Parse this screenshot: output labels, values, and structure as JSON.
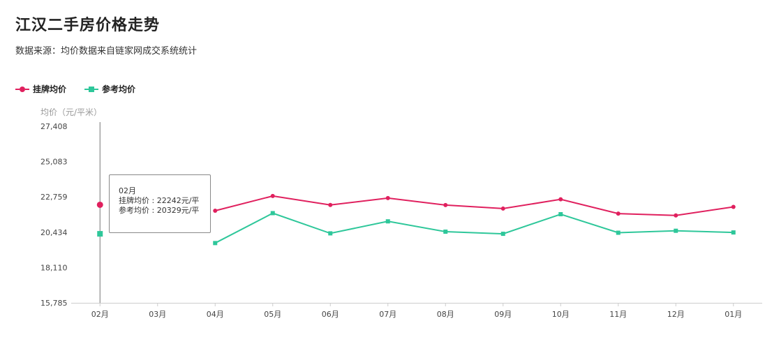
{
  "header": {
    "title": "江汉二手房价格走势",
    "subtitle": "数据来源：均价数据来自链家网成交系统统计"
  },
  "colors": {
    "listing": "#e0205e",
    "reference": "#2ec79a",
    "axis": "#999999",
    "tick_text": "#444444",
    "grid": "#e8e8e8"
  },
  "tooltip": {
    "month": "02月",
    "line1": "挂牌均价 : 22242元/平",
    "line2": "参考均价 : 20329元/平"
  },
  "chart_data": {
    "type": "line",
    "ylabel": "均价（元/平米）",
    "yticks": [
      "27,408",
      "25,083",
      "22,759",
      "20,434",
      "18,110",
      "15,785"
    ],
    "ylim": [
      15785,
      27408
    ],
    "categories": [
      "02月",
      "03月",
      "04月",
      "05月",
      "06月",
      "07月",
      "08月",
      "09月",
      "10月",
      "11月",
      "12月",
      "01月"
    ],
    "series": [
      {
        "name": "挂牌均价",
        "values": [
          22242,
          null,
          21850,
          22820,
          22230,
          22680,
          22220,
          21990,
          22600,
          21660,
          21540,
          22100
        ]
      },
      {
        "name": "参考均价",
        "values": [
          20329,
          null,
          19720,
          21690,
          20360,
          21150,
          20470,
          20330,
          21620,
          20400,
          20530,
          20420
        ]
      }
    ],
    "legend_position": "top-left",
    "grid": false
  }
}
